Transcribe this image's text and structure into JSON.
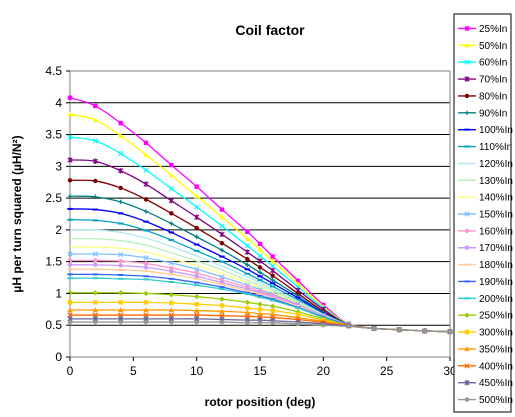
{
  "chart_data": {
    "type": "line",
    "title": "Coil factor",
    "xlabel": "rotor position (deg)",
    "ylabel": "µH per turn squared (µH/N²)",
    "xlim": [
      0,
      30
    ],
    "ylim": [
      0,
      4.5
    ],
    "xticks": [
      0,
      5,
      10,
      15,
      20,
      25,
      30
    ],
    "yticks": [
      0,
      0.5,
      1,
      1.5,
      2,
      2.5,
      3,
      3.5,
      4,
      4.5
    ],
    "grid": "horizontal",
    "legend_position": "right",
    "x": [
      0,
      2,
      4,
      6,
      8,
      10,
      12,
      14,
      15,
      16,
      18,
      20,
      22,
      24,
      26,
      28,
      30
    ],
    "series": [
      {
        "name": "25%In",
        "color": "#ff00ff",
        "marker": "square",
        "values": [
          4.08,
          3.95,
          3.68,
          3.37,
          3.02,
          2.68,
          2.32,
          1.97,
          1.78,
          1.58,
          1.2,
          0.82,
          0.52,
          0.45,
          0.43,
          0.41,
          0.4
        ]
      },
      {
        "name": "50%In",
        "color": "#ffff00",
        "marker": "triangle",
        "values": [
          3.82,
          3.73,
          3.48,
          3.18,
          2.86,
          2.53,
          2.2,
          1.86,
          1.69,
          1.51,
          1.15,
          0.79,
          0.52,
          0.45,
          0.43,
          0.41,
          0.4
        ]
      },
      {
        "name": "60%In",
        "color": "#00ffff",
        "marker": "x",
        "values": [
          3.46,
          3.4,
          3.2,
          2.94,
          2.65,
          2.36,
          2.06,
          1.75,
          1.59,
          1.43,
          1.1,
          0.77,
          0.51,
          0.45,
          0.43,
          0.41,
          0.4
        ]
      },
      {
        "name": "70%In",
        "color": "#800080",
        "marker": "star",
        "values": [
          3.1,
          3.08,
          2.93,
          2.72,
          2.46,
          2.2,
          1.93,
          1.65,
          1.51,
          1.36,
          1.05,
          0.75,
          0.51,
          0.45,
          0.43,
          0.41,
          0.4
        ]
      },
      {
        "name": "80%In",
        "color": "#800000",
        "marker": "circle",
        "values": [
          2.78,
          2.77,
          2.66,
          2.48,
          2.26,
          2.03,
          1.79,
          1.54,
          1.41,
          1.28,
          1.0,
          0.72,
          0.51,
          0.45,
          0.43,
          0.41,
          0.4
        ]
      },
      {
        "name": "90%In",
        "color": "#008080",
        "marker": "plus",
        "values": [
          2.53,
          2.52,
          2.44,
          2.29,
          2.1,
          1.89,
          1.68,
          1.45,
          1.33,
          1.21,
          0.96,
          0.7,
          0.51,
          0.45,
          0.43,
          0.41,
          0.4
        ]
      },
      {
        "name": "100%In",
        "color": "#0000ff",
        "marker": "dash",
        "values": [
          2.33,
          2.32,
          2.26,
          2.13,
          1.96,
          1.77,
          1.58,
          1.38,
          1.27,
          1.16,
          0.93,
          0.69,
          0.51,
          0.45,
          0.43,
          0.41,
          0.4
        ]
      },
      {
        "name": "110%In",
        "color": "#00a0c0",
        "marker": "dash",
        "values": [
          2.16,
          2.15,
          2.1,
          1.99,
          1.84,
          1.67,
          1.5,
          1.31,
          1.21,
          1.11,
          0.9,
          0.68,
          0.51,
          0.45,
          0.43,
          0.41,
          0.4
        ]
      },
      {
        "name": "120%In",
        "color": "#b0e8f0",
        "marker": "none",
        "values": [
          2.0,
          2.0,
          1.96,
          1.87,
          1.74,
          1.59,
          1.43,
          1.26,
          1.17,
          1.07,
          0.88,
          0.67,
          0.51,
          0.45,
          0.43,
          0.41,
          0.4
        ]
      },
      {
        "name": "130%In",
        "color": "#b8f0b8",
        "marker": "none",
        "values": [
          1.86,
          1.86,
          1.83,
          1.76,
          1.64,
          1.51,
          1.37,
          1.21,
          1.13,
          1.04,
          0.86,
          0.66,
          0.51,
          0.45,
          0.43,
          0.41,
          0.4
        ]
      },
      {
        "name": "140%In",
        "color": "#ffff80",
        "marker": "none",
        "values": [
          1.73,
          1.73,
          1.71,
          1.65,
          1.55,
          1.44,
          1.31,
          1.17,
          1.09,
          1.01,
          0.84,
          0.65,
          0.51,
          0.45,
          0.43,
          0.41,
          0.4
        ]
      },
      {
        "name": "150%In",
        "color": "#80c0ff",
        "marker": "x",
        "values": [
          1.62,
          1.62,
          1.61,
          1.56,
          1.48,
          1.38,
          1.26,
          1.13,
          1.06,
          0.99,
          0.83,
          0.65,
          0.51,
          0.45,
          0.43,
          0.41,
          0.4
        ]
      },
      {
        "name": "160%In",
        "color": "#ff99cc",
        "marker": "circle",
        "values": [
          1.52,
          1.52,
          1.51,
          1.47,
          1.4,
          1.32,
          1.21,
          1.1,
          1.03,
          0.97,
          0.82,
          0.64,
          0.51,
          0.45,
          0.43,
          0.41,
          0.4
        ]
      },
      {
        "name": "170%In",
        "color": "#cc99ff",
        "marker": "circle",
        "values": [
          1.45,
          1.45,
          1.44,
          1.41,
          1.35,
          1.27,
          1.17,
          1.07,
          1.01,
          0.95,
          0.81,
          0.64,
          0.51,
          0.45,
          0.43,
          0.41,
          0.4
        ]
      },
      {
        "name": "180%In",
        "color": "#ffcc99",
        "marker": "dash",
        "values": [
          1.38,
          1.38,
          1.37,
          1.35,
          1.3,
          1.23,
          1.14,
          1.04,
          0.99,
          0.93,
          0.8,
          0.63,
          0.51,
          0.45,
          0.43,
          0.41,
          0.4
        ]
      },
      {
        "name": "190%In",
        "color": "#3366ff",
        "marker": "dash",
        "values": [
          1.3,
          1.3,
          1.29,
          1.27,
          1.23,
          1.17,
          1.1,
          1.01,
          0.96,
          0.91,
          0.78,
          0.63,
          0.51,
          0.45,
          0.43,
          0.41,
          0.4
        ]
      },
      {
        "name": "200%In",
        "color": "#33cccc",
        "marker": "dash",
        "values": [
          1.24,
          1.24,
          1.23,
          1.22,
          1.18,
          1.13,
          1.07,
          0.99,
          0.94,
          0.89,
          0.77,
          0.62,
          0.5,
          0.45,
          0.43,
          0.41,
          0.4
        ]
      },
      {
        "name": "250%In",
        "color": "#99cc00",
        "marker": "diamond",
        "values": [
          1.01,
          1.01,
          1.01,
          1.0,
          0.98,
          0.95,
          0.91,
          0.86,
          0.83,
          0.8,
          0.71,
          0.6,
          0.5,
          0.45,
          0.43,
          0.41,
          0.4
        ]
      },
      {
        "name": "300%In",
        "color": "#ffcc00",
        "marker": "square",
        "values": [
          0.86,
          0.86,
          0.86,
          0.86,
          0.85,
          0.83,
          0.81,
          0.77,
          0.75,
          0.73,
          0.67,
          0.58,
          0.5,
          0.45,
          0.43,
          0.41,
          0.4
        ]
      },
      {
        "name": "350%In",
        "color": "#ff9900",
        "marker": "triangle",
        "values": [
          0.74,
          0.74,
          0.74,
          0.74,
          0.74,
          0.73,
          0.72,
          0.7,
          0.68,
          0.67,
          0.62,
          0.56,
          0.5,
          0.45,
          0.43,
          0.41,
          0.4
        ]
      },
      {
        "name": "400%In",
        "color": "#ff6600",
        "marker": "x",
        "values": [
          0.66,
          0.66,
          0.66,
          0.66,
          0.66,
          0.66,
          0.65,
          0.64,
          0.63,
          0.62,
          0.59,
          0.54,
          0.49,
          0.45,
          0.43,
          0.41,
          0.4
        ]
      },
      {
        "name": "450%In",
        "color": "#666699",
        "marker": "star",
        "values": [
          0.6,
          0.6,
          0.6,
          0.6,
          0.6,
          0.6,
          0.59,
          0.58,
          0.58,
          0.57,
          0.55,
          0.52,
          0.49,
          0.45,
          0.43,
          0.41,
          0.4
        ]
      },
      {
        "name": "500%In",
        "color": "#969696",
        "marker": "circle",
        "values": [
          0.55,
          0.55,
          0.55,
          0.55,
          0.55,
          0.55,
          0.55,
          0.54,
          0.54,
          0.54,
          0.52,
          0.5,
          0.48,
          0.45,
          0.43,
          0.41,
          0.4
        ]
      }
    ]
  }
}
